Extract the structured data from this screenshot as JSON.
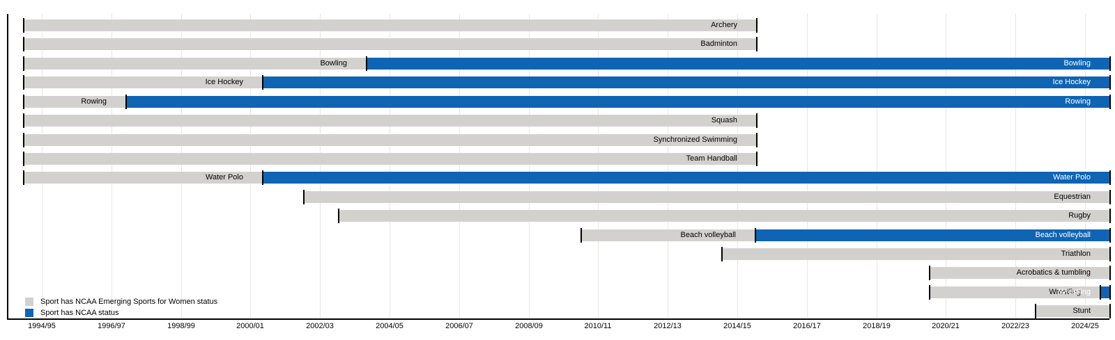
{
  "chart_data": {
    "type": "timeline",
    "subject": "Gantt timeline of women's college sports and their NCAA status by academic year",
    "axis": {
      "unit": "academic year",
      "range": [
        1993.9,
        2025.3
      ],
      "gridlines": true,
      "tick_values": [
        1994.5,
        1996.5,
        1998.5,
        2000.5,
        2002.5,
        2004.5,
        2006.5,
        2008.5,
        2010.5,
        2012.5,
        2014.5,
        2016.5,
        2018.5,
        2020.5,
        2022.5,
        2024.5
      ],
      "tick_labels": [
        "1994/95",
        "1996/97",
        "1998/99",
        "2000/01",
        "2002/03",
        "2004/05",
        "2006/07",
        "2008/09",
        "2010/11",
        "2012/13",
        "2014/15",
        "2016/17",
        "2018/19",
        "2020/21",
        "2022/23",
        "2024/25"
      ]
    },
    "legend": [
      {
        "key": "emerging",
        "label": "Sport has NCAA Emerging Sports for Women status",
        "color": "#d3d1ce"
      },
      {
        "key": "ncaa",
        "label": "Sport has NCAA status",
        "color": "#0f64b4"
      }
    ],
    "sports": [
      {
        "name": "Archery",
        "segments": [
          {
            "status": "emerging",
            "start": 1993.96,
            "end": 2015.04
          }
        ]
      },
      {
        "name": "Badminton",
        "segments": [
          {
            "status": "emerging",
            "start": 1993.96,
            "end": 2015.04
          }
        ]
      },
      {
        "name": "Bowling",
        "segments": [
          {
            "status": "emerging",
            "start": 1993.96,
            "end": 2003.82
          },
          {
            "status": "ncaa",
            "start": 2003.82,
            "end": 2025.2
          }
        ]
      },
      {
        "name": "Ice Hockey",
        "segments": [
          {
            "status": "emerging",
            "start": 1993.96,
            "end": 2000.83
          },
          {
            "status": "ncaa",
            "start": 2000.83,
            "end": 2025.2
          }
        ]
      },
      {
        "name": "Rowing",
        "segments": [
          {
            "status": "emerging",
            "start": 1993.96,
            "end": 1996.9
          },
          {
            "status": "ncaa",
            "start": 1996.9,
            "end": 2025.2
          }
        ]
      },
      {
        "name": "Squash",
        "segments": [
          {
            "status": "emerging",
            "start": 1993.96,
            "end": 2015.04
          }
        ]
      },
      {
        "name": "Synchronized Swimming",
        "segments": [
          {
            "status": "emerging",
            "start": 1993.96,
            "end": 2015.04
          }
        ]
      },
      {
        "name": "Team Handball",
        "segments": [
          {
            "status": "emerging",
            "start": 1993.96,
            "end": 2015.04
          }
        ]
      },
      {
        "name": "Water Polo",
        "segments": [
          {
            "status": "emerging",
            "start": 1993.96,
            "end": 2000.83
          },
          {
            "status": "ncaa",
            "start": 2000.83,
            "end": 2025.2
          }
        ]
      },
      {
        "name": "Equestrian",
        "segments": [
          {
            "status": "emerging",
            "start": 2002.01,
            "end": 2025.2
          }
        ]
      },
      {
        "name": "Rugby",
        "segments": [
          {
            "status": "emerging",
            "start": 2003.02,
            "end": 2025.2
          }
        ]
      },
      {
        "name": "Beach volleyball",
        "segments": [
          {
            "status": "emerging",
            "start": 2009.99,
            "end": 2015.0
          },
          {
            "status": "ncaa",
            "start": 2015.0,
            "end": 2025.2
          }
        ]
      },
      {
        "name": "Triathlon",
        "segments": [
          {
            "status": "emerging",
            "start": 2014.04,
            "end": 2025.2
          }
        ]
      },
      {
        "name": "Acrobatics & tumbling",
        "segments": [
          {
            "status": "emerging",
            "start": 2020.01,
            "end": 2025.2
          }
        ]
      },
      {
        "name": "Wrestling",
        "segments": [
          {
            "status": "emerging",
            "start": 2020.01,
            "end": 2024.92
          },
          {
            "status": "ncaa",
            "start": 2024.92,
            "end": 2025.2
          }
        ]
      },
      {
        "name": "Stunt",
        "segments": [
          {
            "status": "emerging",
            "start": 2023.06,
            "end": 2025.2
          }
        ]
      }
    ]
  }
}
